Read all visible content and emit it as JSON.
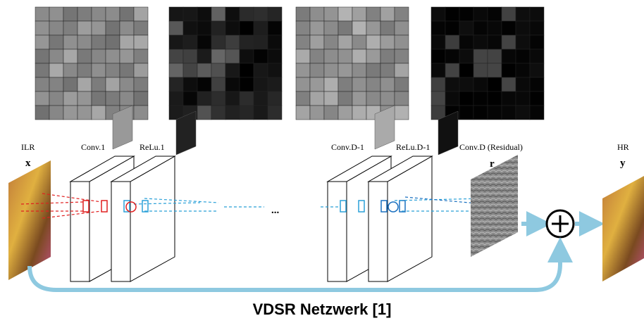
{
  "title": "VDSR Netzwerk [1]",
  "input": {
    "label": "ILR",
    "symbol": "x"
  },
  "layers": [
    {
      "label": "Conv.1"
    },
    {
      "label": "ReLu.1"
    },
    {
      "label": "Conv.D-1"
    },
    {
      "label": "ReLu.D-1"
    }
  ],
  "ellipsis": "...",
  "residual": {
    "label": "Conv.D (Residual)",
    "symbol": "r"
  },
  "output": {
    "label": "HR",
    "symbol": "y"
  }
}
